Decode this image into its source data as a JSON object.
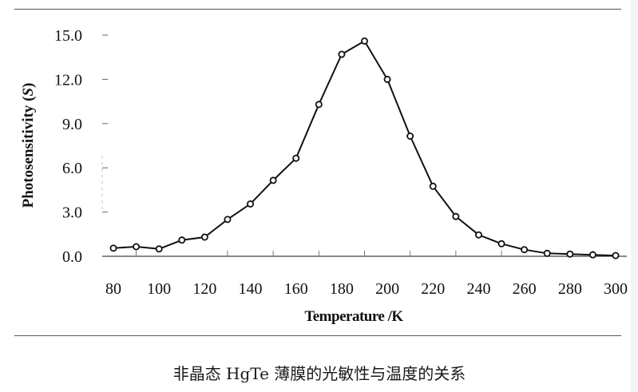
{
  "chart_data": {
    "type": "line",
    "title": "",
    "caption": "非晶态 HgTe 薄膜的光敏性与温度的关系",
    "xlabel": "Temperature /K",
    "ylabel": "Photosensitivity (S)",
    "ylabel_parts": {
      "main": "Photosensitivity (",
      "italic": "S",
      "end": ")"
    },
    "xlim": [
      80,
      300
    ],
    "ylim": [
      0,
      15
    ],
    "x_ticks": [
      80,
      100,
      120,
      140,
      160,
      180,
      200,
      220,
      240,
      260,
      280,
      300
    ],
    "x_tick_labels": [
      "80",
      "100",
      "120",
      "140",
      "160",
      "180",
      "200",
      "220",
      "240",
      "260",
      "280",
      "300"
    ],
    "y_ticks": [
      0,
      3,
      6,
      9,
      12,
      15
    ],
    "y_tick_labels": [
      "0.0",
      "3.0",
      "6.0",
      "9.0",
      "12.0",
      "15.0"
    ],
    "grid": false,
    "legend": null,
    "marker": "open-circle",
    "line_color": "#111111",
    "series": [
      {
        "name": "Photosensitivity",
        "x": [
          80,
          90,
          100,
          110,
          120,
          130,
          140,
          150,
          160,
          170,
          180,
          190,
          200,
          210,
          220,
          230,
          240,
          250,
          260,
          270,
          280,
          290,
          300
        ],
        "values": [
          0.55,
          0.65,
          0.5,
          1.1,
          1.3,
          2.5,
          3.55,
          5.15,
          6.65,
          10.3,
          13.7,
          14.6,
          12.0,
          8.15,
          4.75,
          2.7,
          1.45,
          0.85,
          0.45,
          0.2,
          0.15,
          0.1,
          0.05
        ]
      }
    ]
  }
}
